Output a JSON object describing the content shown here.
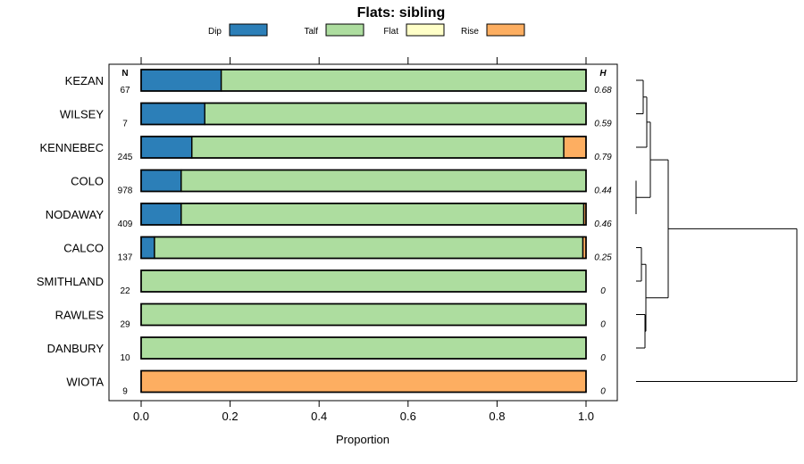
{
  "chart_data": {
    "type": "bar",
    "orientation": "horizontal",
    "stacked": true,
    "title": "Flats: sibling",
    "xlabel": "Proportion",
    "xlim": [
      0,
      1
    ],
    "xticks": [
      "0.0",
      "0.2",
      "0.4",
      "0.6",
      "0.8",
      "1.0"
    ],
    "n_header": "N",
    "h_header": "H",
    "legend": [
      {
        "name": "Dip",
        "color": "#2c7fb8"
      },
      {
        "name": "Talf",
        "color": "#addd9f"
      },
      {
        "name": "Flat",
        "color": "#ffffc8"
      },
      {
        "name": "Rise",
        "color": "#fdae61"
      }
    ],
    "categories": [
      "KEZAN",
      "WILSEY",
      "KENNEBEC",
      "COLO",
      "NODAWAY",
      "CALCO",
      "SMITHLAND",
      "RAWLES",
      "DANBURY",
      "WIOTA"
    ],
    "n": [
      "67",
      "7",
      "245",
      "978",
      "409",
      "137",
      "22",
      "29",
      "10",
      "9"
    ],
    "h": [
      "0.68",
      "0.59",
      "0.79",
      "0.44",
      "0.46",
      "0.25",
      "0",
      "0",
      "0",
      "0"
    ],
    "series": [
      {
        "name": "Dip",
        "values": [
          0.18,
          0.143,
          0.114,
          0.09,
          0.09,
          0.03,
          0,
          0,
          0,
          0
        ]
      },
      {
        "name": "Talf",
        "values": [
          0.82,
          0.857,
          0.836,
          0.91,
          0.905,
          0.963,
          1,
          1,
          1,
          0
        ]
      },
      {
        "name": "Flat",
        "values": [
          0,
          0,
          0,
          0,
          0,
          0,
          0,
          0,
          0,
          0
        ]
      },
      {
        "name": "Rise",
        "values": [
          0,
          0,
          0.05,
          0,
          0.005,
          0.007,
          0,
          0,
          0,
          1
        ]
      }
    ],
    "dendrogram": true
  }
}
